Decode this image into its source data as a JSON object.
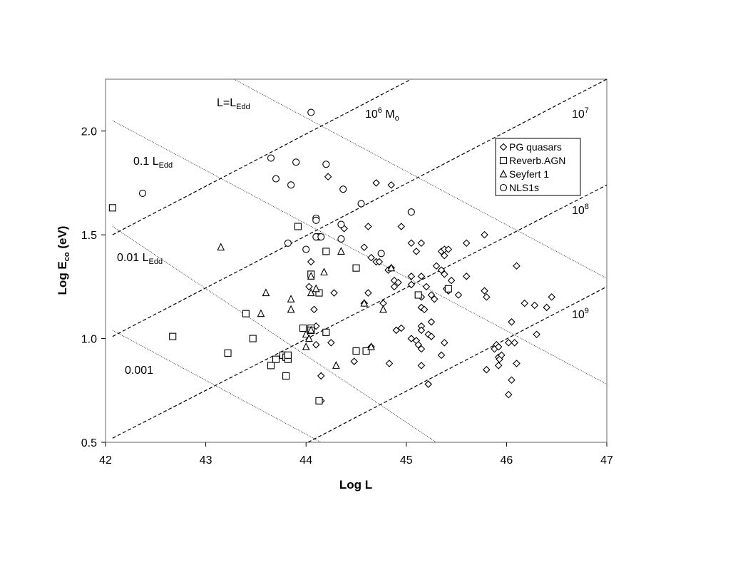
{
  "chart_data": {
    "type": "scatter",
    "xlabel": "Log L",
    "ylabel_main": "Log E",
    "ylabel_sub": "co",
    "ylabel_unit": " (eV)",
    "xlim": [
      42,
      47
    ],
    "ylim": [
      0.5,
      2.25
    ],
    "xticks": [
      "42",
      "43",
      "44",
      "45",
      "46",
      "47"
    ],
    "yticks": [
      "0.5",
      "1.0",
      "1.5",
      "2.0"
    ],
    "grid": false,
    "legend_position": "upper-right",
    "annotations": {
      "l_edd": {
        "main": "L=L",
        "sub": "Edd"
      },
      "l01": {
        "main": "0.1 L",
        "sub": "Edd"
      },
      "l001": {
        "main": "0.01 L",
        "sub": "Edd"
      },
      "l0001": {
        "main": "0.001"
      },
      "m6": {
        "main": "10",
        "sup": "6",
        "tail": " M",
        "sub": "o"
      },
      "m7": {
        "main": "10",
        "sup": "7"
      },
      "m8": {
        "main": "10",
        "sup": "8"
      },
      "m9": {
        "main": "10",
        "sup": "9"
      }
    },
    "eddington_lines": [
      {
        "label": "L=LEdd",
        "style": "dotted",
        "points": [
          [
            43.28,
            2.25
          ],
          [
            47,
            1.29
          ]
        ]
      },
      {
        "label": "0.1 LEdd",
        "style": "dotted",
        "points": [
          [
            42.07,
            2.05
          ],
          [
            47,
            0.78
          ]
        ]
      },
      {
        "label": "0.01 LEdd",
        "style": "dotted",
        "points": [
          [
            42.07,
            1.54
          ],
          [
            45.3,
            0.5
          ]
        ]
      },
      {
        "label": "0.001",
        "style": "dotted",
        "points": [
          [
            42.07,
            1.04
          ],
          [
            44.15,
            0.5
          ]
        ]
      }
    ],
    "mass_lines": [
      {
        "label": "10^6 Mo",
        "style": "dashed",
        "points": [
          [
            42.07,
            1.5
          ],
          [
            45.05,
            2.25
          ]
        ]
      },
      {
        "label": "10^7",
        "style": "dashed",
        "points": [
          [
            42.07,
            1.01
          ],
          [
            47,
            2.25
          ]
        ]
      },
      {
        "label": "10^8",
        "style": "dashed",
        "points": [
          [
            42.07,
            0.52
          ],
          [
            47,
            1.74
          ]
        ]
      },
      {
        "label": "10^9",
        "style": "dashed",
        "points": [
          [
            44.02,
            0.5
          ],
          [
            47,
            1.25
          ]
        ]
      }
    ],
    "series": [
      {
        "name": "PG quasars",
        "marker": "diamond",
        "points": [
          [
            44.22,
            1.78
          ],
          [
            44.7,
            1.75
          ],
          [
            44.85,
            1.74
          ],
          [
            44.38,
            1.53
          ],
          [
            44.62,
            1.54
          ],
          [
            44.95,
            1.54
          ],
          [
            45.05,
            1.61
          ],
          [
            45.15,
            1.46
          ],
          [
            45.05,
            1.46
          ],
          [
            45.1,
            1.42
          ],
          [
            45.35,
            1.42
          ],
          [
            45.38,
            1.43
          ],
          [
            45.42,
            1.43
          ],
          [
            45.38,
            1.4
          ],
          [
            45.6,
            1.46
          ],
          [
            45.78,
            1.5
          ],
          [
            45.3,
            1.35
          ],
          [
            45.35,
            1.33
          ],
          [
            45.38,
            1.31
          ],
          [
            45.6,
            1.3
          ],
          [
            45.45,
            1.28
          ],
          [
            45.52,
            1.21
          ],
          [
            45.4,
            1.24
          ],
          [
            45.42,
            1.23
          ],
          [
            45.78,
            1.23
          ],
          [
            45.8,
            1.2
          ],
          [
            46.1,
            1.35
          ],
          [
            44.58,
            1.44
          ],
          [
            44.65,
            1.39
          ],
          [
            44.7,
            1.37
          ],
          [
            44.73,
            1.37
          ],
          [
            44.82,
            1.33
          ],
          [
            44.85,
            1.34
          ],
          [
            44.88,
            1.28
          ],
          [
            44.88,
            1.25
          ],
          [
            44.92,
            1.27
          ],
          [
            45.05,
            1.3
          ],
          [
            45.05,
            1.26
          ],
          [
            45.15,
            1.3
          ],
          [
            45.2,
            1.25
          ],
          [
            45.25,
            1.21
          ],
          [
            45.15,
            1.2
          ],
          [
            45.15,
            1.15
          ],
          [
            45.18,
            1.14
          ],
          [
            45.28,
            1.19
          ],
          [
            45.25,
            1.08
          ],
          [
            45.15,
            1.06
          ],
          [
            45.15,
            1.04
          ],
          [
            45.22,
            1.02
          ],
          [
            45.05,
            1.0
          ],
          [
            45.1,
            0.99
          ],
          [
            45.12,
            0.97
          ],
          [
            45.15,
            0.95
          ],
          [
            45.38,
            0.98
          ],
          [
            45.35,
            0.92
          ],
          [
            45.22,
            0.78
          ],
          [
            45.15,
            0.87
          ],
          [
            44.95,
            1.05
          ],
          [
            44.9,
            1.04
          ],
          [
            44.62,
            1.22
          ],
          [
            44.58,
            1.17
          ],
          [
            44.77,
            1.17
          ],
          [
            44.28,
            1.22
          ],
          [
            44.05,
            1.37
          ],
          [
            44.03,
            1.25
          ],
          [
            44.08,
            1.14
          ],
          [
            44.1,
            1.06
          ],
          [
            44.1,
            0.97
          ],
          [
            44.25,
            0.98
          ],
          [
            44.48,
            0.89
          ],
          [
            44.65,
            0.96
          ],
          [
            44.83,
            0.88
          ],
          [
            44.15,
            0.82
          ],
          [
            44.15,
            0.7
          ],
          [
            45.88,
            0.95
          ],
          [
            45.9,
            0.97
          ],
          [
            45.92,
            0.96
          ],
          [
            45.92,
            0.91
          ],
          [
            45.92,
            0.87
          ],
          [
            45.93,
            0.9
          ],
          [
            45.95,
            0.92
          ],
          [
            45.8,
            0.85
          ],
          [
            46.02,
            0.98
          ],
          [
            46.05,
            1.08
          ],
          [
            46.08,
            0.98
          ],
          [
            46.1,
            0.88
          ],
          [
            46.18,
            1.17
          ],
          [
            46.28,
            1.16
          ],
          [
            46.3,
            1.02
          ],
          [
            46.4,
            1.15
          ],
          [
            46.45,
            1.2
          ],
          [
            46.05,
            0.8
          ],
          [
            46.02,
            0.73
          ],
          [
            45.25,
            1.01
          ]
        ]
      },
      {
        "name": "Reverb.AGN",
        "marker": "square",
        "points": [
          [
            42.07,
            1.63
          ],
          [
            42.67,
            1.01
          ],
          [
            43.22,
            0.93
          ],
          [
            43.4,
            1.12
          ],
          [
            43.47,
            1.0
          ],
          [
            43.65,
            0.87
          ],
          [
            43.7,
            0.9
          ],
          [
            43.77,
            0.92
          ],
          [
            43.8,
            0.91
          ],
          [
            43.8,
            0.82
          ],
          [
            43.82,
            0.9
          ],
          [
            43.82,
            0.92
          ],
          [
            43.92,
            1.54
          ],
          [
            43.97,
            1.05
          ],
          [
            44.05,
            1.31
          ],
          [
            44.05,
            1.05
          ],
          [
            44.05,
            1.04
          ],
          [
            44.12,
            1.49
          ],
          [
            44.13,
            1.22
          ],
          [
            44.13,
            0.7
          ],
          [
            44.2,
            1.42
          ],
          [
            44.2,
            1.03
          ],
          [
            44.5,
            1.34
          ],
          [
            44.5,
            0.94
          ],
          [
            44.6,
            0.94
          ],
          [
            45.12,
            1.21
          ],
          [
            45.42,
            1.24
          ]
        ]
      },
      {
        "name": "Seyfert 1",
        "marker": "triangle",
        "points": [
          [
            43.15,
            1.44
          ],
          [
            43.6,
            1.22
          ],
          [
            43.55,
            1.12
          ],
          [
            43.85,
            1.19
          ],
          [
            43.85,
            1.14
          ],
          [
            44.0,
            0.96
          ],
          [
            44.0,
            1.02
          ],
          [
            44.03,
            1.0
          ],
          [
            44.05,
            1.3
          ],
          [
            44.05,
            1.22
          ],
          [
            44.05,
            1.04
          ],
          [
            44.1,
            1.24
          ],
          [
            44.18,
            1.32
          ],
          [
            44.3,
            0.87
          ],
          [
            44.35,
            1.42
          ],
          [
            44.58,
            1.17
          ],
          [
            44.65,
            0.96
          ],
          [
            44.77,
            1.14
          ],
          [
            44.85,
            1.34
          ]
        ]
      },
      {
        "name": "NLS1s",
        "marker": "circle",
        "points": [
          [
            42.37,
            1.7
          ],
          [
            43.65,
            1.87
          ],
          [
            43.7,
            1.77
          ],
          [
            43.85,
            1.74
          ],
          [
            43.9,
            1.85
          ],
          [
            44.05,
            2.09
          ],
          [
            44.2,
            1.84
          ],
          [
            44.37,
            1.72
          ],
          [
            44.55,
            1.65
          ],
          [
            44.1,
            1.58
          ],
          [
            44.1,
            1.57
          ],
          [
            44.1,
            1.49
          ],
          [
            44.15,
            1.49
          ],
          [
            44.35,
            1.55
          ],
          [
            44.35,
            1.48
          ],
          [
            44.0,
            1.43
          ],
          [
            43.82,
            1.46
          ],
          [
            44.75,
            1.41
          ],
          [
            45.05,
            1.61
          ]
        ]
      }
    ]
  }
}
